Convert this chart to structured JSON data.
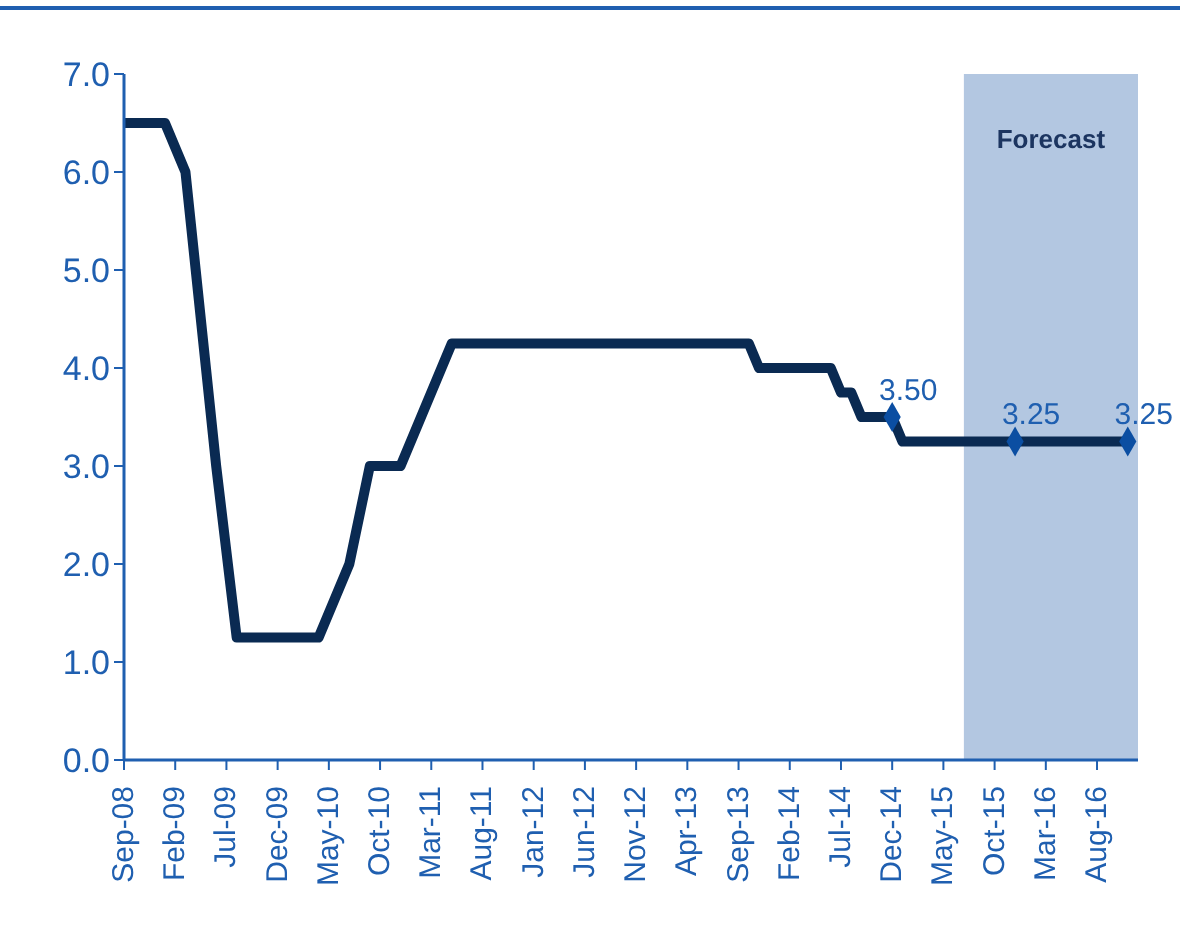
{
  "chart_data": {
    "type": "line",
    "xlim": [
      "2008-09",
      "2016-12"
    ],
    "xticks": [
      {
        "value": "2008-09",
        "label": "Sep-08"
      },
      {
        "value": "2009-02",
        "label": "Feb-09"
      },
      {
        "value": "2009-07",
        "label": "Jul-09"
      },
      {
        "value": "2009-12",
        "label": "Dec-09"
      },
      {
        "value": "2010-05",
        "label": "May-10"
      },
      {
        "value": "2010-10",
        "label": "Oct-10"
      },
      {
        "value": "2011-03",
        "label": "Mar-11"
      },
      {
        "value": "2011-08",
        "label": "Aug-11"
      },
      {
        "value": "2012-01",
        "label": "Jan-12"
      },
      {
        "value": "2012-06",
        "label": "Jun-12"
      },
      {
        "value": "2012-11",
        "label": "Nov-12"
      },
      {
        "value": "2013-04",
        "label": "Apr-13"
      },
      {
        "value": "2013-09",
        "label": "Sep-13"
      },
      {
        "value": "2014-02",
        "label": "Feb-14"
      },
      {
        "value": "2014-07",
        "label": "Jul-14"
      },
      {
        "value": "2014-12",
        "label": "Dec-14"
      },
      {
        "value": "2015-05",
        "label": "May-15"
      },
      {
        "value": "2015-10",
        "label": "Oct-15"
      },
      {
        "value": "2016-03",
        "label": "Mar-16"
      },
      {
        "value": "2016-08",
        "label": "Aug-16"
      }
    ],
    "ylim": [
      0,
      7
    ],
    "yticks": [
      {
        "value": 0,
        "label": "0.0"
      },
      {
        "value": 1,
        "label": "1.0"
      },
      {
        "value": 2,
        "label": "2.0"
      },
      {
        "value": 3,
        "label": "3.0"
      },
      {
        "value": 4,
        "label": "4.0"
      },
      {
        "value": 5,
        "label": "5.0"
      },
      {
        "value": 6,
        "label": "6.0"
      },
      {
        "value": 7,
        "label": "7.0"
      }
    ],
    "grid": false,
    "legend": false,
    "bands": [
      {
        "axis": "x",
        "from": "2015-07",
        "to": "2016-12",
        "label": "Forecast",
        "color": "#b3c7e1"
      }
    ],
    "series": [
      {
        "color": "#0a2a52",
        "marker": "none",
        "line_style": "solid",
        "x": [
          "2008-09",
          "2009-01",
          "2009-03",
          "2009-04",
          "2009-05",
          "2009-06",
          "2009-08",
          "2010-04",
          "2010-05",
          "2010-07",
          "2010-09",
          "2010-12",
          "2011-02",
          "2011-04",
          "2011-05",
          "2013-10",
          "2013-11",
          "2014-06",
          "2014-07",
          "2014-08",
          "2014-09",
          "2014-12",
          "2015-01",
          "2016-11"
        ],
        "values": [
          6.5,
          6.5,
          6.0,
          5.0,
          4.0,
          3.0,
          1.25,
          1.25,
          1.5,
          2.0,
          3.0,
          3.0,
          3.5,
          4.0,
          4.25,
          4.25,
          4.0,
          4.0,
          3.75,
          3.75,
          3.5,
          3.5,
          3.25,
          3.25
        ]
      },
      {
        "type": "scatter",
        "color": "#0b4ea2",
        "marker": "diamond",
        "value_labels": [
          "3.50",
          "3.25",
          "3.25"
        ],
        "x": [
          "2014-12",
          "2015-12",
          "2016-11"
        ],
        "values": [
          3.5,
          3.25,
          3.25
        ]
      }
    ]
  }
}
